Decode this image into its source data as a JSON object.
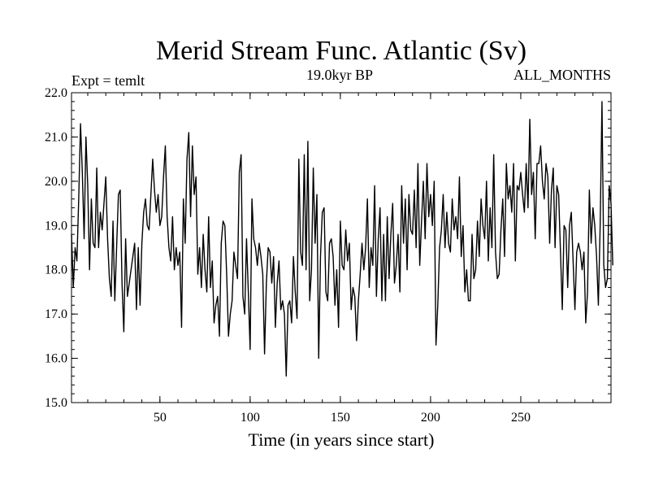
{
  "chart_data": {
    "type": "line",
    "title": "Merid Stream Func. Atlantic (Sv)",
    "subtitle_left": "Expt = temlt",
    "subtitle_center": "19.0kyr BP",
    "subtitle_right": "ALL_MONTHS",
    "xlabel": "Time (in years since start)",
    "ylabel": "",
    "xlim": [
      1,
      300
    ],
    "ylim": [
      15.0,
      22.0
    ],
    "x_ticks": [
      50,
      100,
      150,
      200,
      250
    ],
    "x_tick_labels": [
      "50",
      "100",
      "150",
      "200",
      "250"
    ],
    "y_ticks": [
      15,
      16,
      17,
      18,
      19,
      20,
      21,
      22
    ],
    "y_tick_labels": [
      "15.0",
      "16.0",
      "17.0",
      "18.0",
      "19.0",
      "20.0",
      "21.0",
      "22.0"
    ],
    "grid": false,
    "series": [
      {
        "name": "Merid Stream Func. Atlantic",
        "x_start": 1,
        "x_step": 1,
        "values": [
          18.8,
          17.6,
          18.5,
          18.2,
          19.6,
          21.3,
          20.2,
          18.7,
          21.0,
          19.9,
          18.0,
          19.6,
          18.6,
          18.5,
          20.3,
          18.5,
          19.3,
          18.9,
          19.5,
          20.1,
          18.7,
          17.8,
          17.4,
          19.1,
          17.3,
          18.5,
          19.7,
          19.8,
          17.7,
          16.6,
          18.7,
          17.4,
          17.7,
          18.0,
          18.3,
          18.6,
          17.1,
          18.5,
          17.2,
          18.6,
          19.3,
          19.6,
          19.0,
          18.9,
          19.7,
          20.5,
          19.8,
          19.3,
          19.7,
          19.0,
          19.2,
          20.1,
          20.8,
          19.2,
          18.5,
          18.2,
          19.2,
          18.0,
          18.5,
          18.1,
          18.4,
          16.7,
          19.6,
          18.6,
          20.5,
          21.1,
          19.2,
          20.8,
          19.7,
          20.1,
          17.9,
          18.5,
          17.6,
          18.8,
          18.0,
          17.5,
          19.2,
          17.6,
          18.2,
          16.8,
          17.2,
          17.4,
          16.5,
          18.6,
          19.1,
          19.0,
          17.9,
          16.5,
          17.0,
          17.3,
          18.4,
          18.1,
          17.8,
          20.2,
          20.6,
          17.4,
          17.0,
          18.7,
          17.5,
          16.2,
          19.6,
          18.7,
          18.5,
          18.1,
          18.6,
          18.3,
          17.9,
          16.1,
          17.7,
          18.5,
          18.4,
          17.7,
          18.3,
          16.7,
          17.7,
          18.2,
          17.1,
          17.3,
          17.0,
          15.6,
          17.2,
          17.3,
          16.8,
          18.3,
          17.5,
          16.9,
          20.5,
          18.4,
          18.1,
          20.6,
          18.0,
          20.9,
          17.3,
          18.0,
          20.3,
          18.6,
          19.7,
          16.0,
          18.3,
          19.3,
          19.4,
          17.5,
          17.3,
          18.6,
          18.7,
          18.3,
          17.2,
          18.0,
          16.7,
          19.1,
          18.1,
          18.0,
          18.9,
          18.2,
          18.6,
          17.1,
          17.6,
          17.4,
          16.4,
          17.3,
          17.9,
          18.6,
          18.0,
          18.5,
          19.6,
          17.6,
          18.5,
          18.1,
          19.9,
          17.4,
          18.7,
          19.4,
          17.3,
          18.8,
          17.3,
          19.2,
          17.8,
          18.8,
          19.5,
          17.7,
          18.1,
          18.8,
          17.5,
          19.9,
          18.6,
          19.6,
          18.0,
          19.7,
          18.9,
          18.8,
          19.8,
          18.5,
          20.4,
          18.1,
          19.1,
          20.0,
          18.7,
          20.4,
          19.2,
          19.7,
          19.0,
          20.0,
          16.3,
          17.2,
          18.5,
          18.9,
          19.7,
          18.5,
          19.3,
          18.6,
          18.4,
          19.6,
          18.9,
          19.2,
          18.7,
          20.1,
          18.3,
          19.0,
          17.5,
          18.0,
          17.3,
          17.3,
          18.8,
          17.8,
          18.0,
          19.1,
          18.3,
          19.6,
          19.0,
          18.7,
          20.0,
          18.2,
          19.4,
          18.5,
          20.6,
          18.4,
          17.8,
          17.9,
          18.9,
          19.6,
          18.3,
          20.4,
          19.6,
          19.9,
          19.3,
          20.4,
          18.2,
          19.9,
          19.8,
          20.2,
          19.7,
          19.3,
          20.4,
          19.4,
          21.4,
          19.7,
          20.2,
          18.7,
          20.4,
          20.4,
          20.8,
          20.0,
          19.6,
          20.4,
          20.1,
          18.6,
          19.8,
          20.3,
          18.5,
          19.9,
          19.7,
          18.4,
          17.1,
          19.0,
          18.9,
          17.6,
          19.0,
          19.3,
          18.2,
          17.1,
          18.4,
          18.6,
          18.4,
          18.0,
          18.4,
          16.8,
          17.5,
          19.8,
          18.6,
          19.4,
          19.0,
          18.3,
          17.2,
          19.0,
          21.8,
          18.1,
          17.6,
          17.8,
          19.9,
          19.5,
          18.1
        ]
      }
    ]
  }
}
